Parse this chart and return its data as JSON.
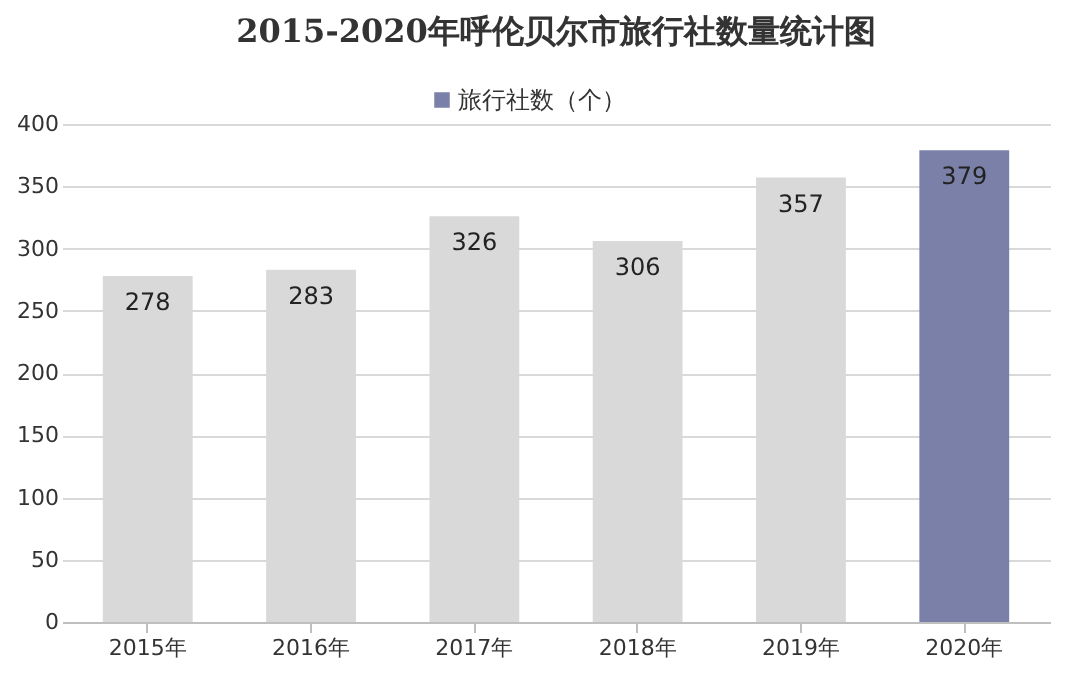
{
  "chart_data": {
    "type": "bar",
    "title": "2015-2020年呼伦贝尔市旅行社数量统计图",
    "categories": [
      "2015年",
      "2016年",
      "2017年",
      "2018年",
      "2019年",
      "2020年"
    ],
    "series": [
      {
        "name": "旅行社数（个）",
        "color": "#7a80a8",
        "colors": [
          "#d9d9d9",
          "#d9d9d9",
          "#d9d9d9",
          "#d9d9d9",
          "#d9d9d9",
          "#7a80a8"
        ],
        "values": [
          278,
          283,
          326,
          306,
          357,
          379
        ]
      }
    ],
    "ylim": [
      0,
      400
    ],
    "yticks": [
      0,
      50,
      100,
      150,
      200,
      250,
      300,
      350,
      400
    ],
    "grid": "y",
    "legend": "top",
    "data_labels": true
  }
}
